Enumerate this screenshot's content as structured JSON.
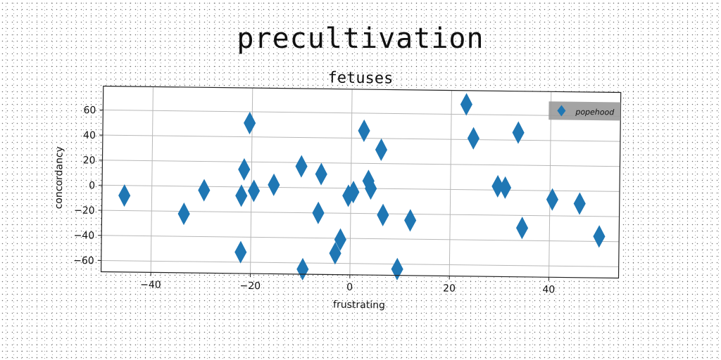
{
  "suptitle": "precultivation",
  "chart_data": {
    "type": "scatter",
    "title": "fetuses",
    "xlabel": "frustrating",
    "ylabel": "concordancy",
    "xlim": [
      -50,
      54
    ],
    "ylim": [
      -69,
      79
    ],
    "xticks": [
      -40,
      -20,
      0,
      20,
      40
    ],
    "xtick_labels": [
      "−40",
      "−20",
      "0",
      "20",
      "40"
    ],
    "yticks": [
      60,
      40,
      20,
      0,
      -20,
      -40,
      -60
    ],
    "ytick_labels": [
      "60",
      "40",
      "20",
      "0",
      "−20",
      "−40",
      "−60"
    ],
    "grid": true,
    "legend_position": "top-right",
    "marker": "thin-diamond",
    "color": "#1f77b4",
    "series": [
      {
        "name": "popehood",
        "points": [
          [
            -45.5,
            -8
          ],
          [
            -33.5,
            -22
          ],
          [
            -29.5,
            -3
          ],
          [
            -22,
            -7
          ],
          [
            -22,
            -52
          ],
          [
            -21.5,
            14
          ],
          [
            -20.5,
            51
          ],
          [
            -19.5,
            -3
          ],
          [
            -15.5,
            2
          ],
          [
            -10,
            17
          ],
          [
            -9.5,
            -65
          ],
          [
            -6.5,
            -20
          ],
          [
            -6,
            11
          ],
          [
            -3,
            -52
          ],
          [
            -2,
            -41
          ],
          [
            -0.5,
            -6
          ],
          [
            0.5,
            -3
          ],
          [
            2.5,
            46
          ],
          [
            3.5,
            6
          ],
          [
            4,
            0
          ],
          [
            6,
            31
          ],
          [
            6.5,
            -21
          ],
          [
            9.5,
            -64
          ],
          [
            12,
            -25
          ],
          [
            23,
            68
          ],
          [
            24.5,
            41
          ],
          [
            29.5,
            3
          ],
          [
            31,
            2
          ],
          [
            33.5,
            46
          ],
          [
            34.5,
            -30
          ],
          [
            40.5,
            -7
          ],
          [
            46,
            -10
          ],
          [
            50,
            -36
          ]
        ]
      }
    ]
  }
}
